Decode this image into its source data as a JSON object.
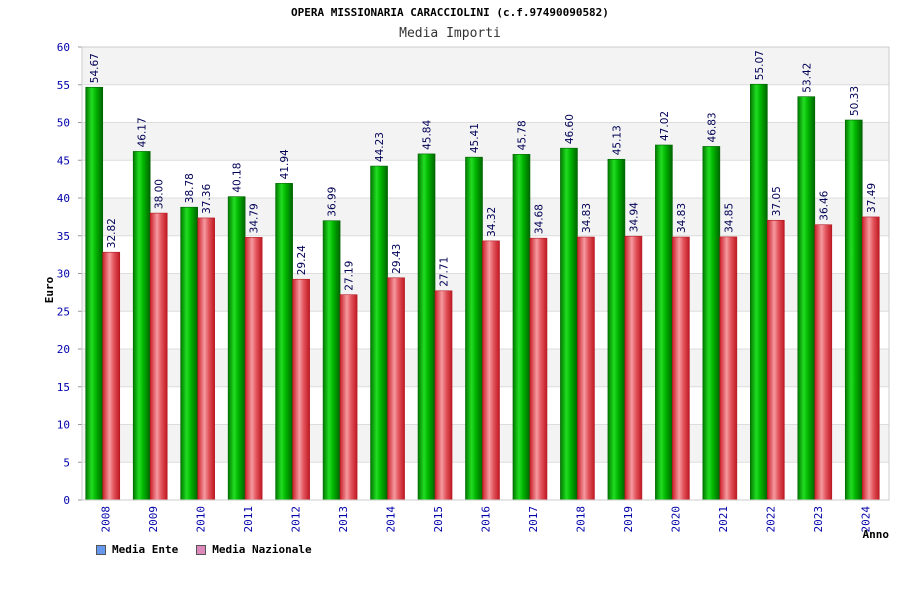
{
  "chart_data": {
    "type": "bar",
    "title": "OPERA MISSIONARIA CARACCIOLINI (c.f.97490090582)",
    "subtitle": "Media Importi",
    "xlabel": "Anno",
    "ylabel": "Euro",
    "ylim": [
      0,
      60
    ],
    "yticks": [
      0,
      5,
      10,
      15,
      20,
      25,
      30,
      35,
      40,
      45,
      50,
      55,
      60
    ],
    "grid": true,
    "legend_position": "bottom-left",
    "categories": [
      "2008",
      "2009",
      "2010",
      "2011",
      "2012",
      "2013",
      "2014",
      "2015",
      "2016",
      "2017",
      "2018",
      "2019",
      "2020",
      "2021",
      "2022",
      "2023",
      "2024"
    ],
    "series": [
      {
        "name": "Media Ente",
        "color": "#00aa00",
        "legend_color": "#6699ee",
        "values": [
          54.67,
          46.17,
          38.78,
          40.18,
          41.94,
          36.99,
          44.23,
          45.84,
          45.41,
          45.78,
          46.6,
          45.13,
          47.02,
          46.83,
          55.07,
          53.42,
          50.33
        ],
        "labels": [
          "54.67",
          "46.17",
          "38.78",
          "40.18",
          "41.94",
          "36.99",
          "44.23",
          "45.84",
          "45.41",
          "45.78",
          "46.60",
          "45.13",
          "47.02",
          "46.83",
          "55.07",
          "53.42",
          "50.33"
        ]
      },
      {
        "name": "Media Nazionale",
        "color": "#e03a3a",
        "legend_color": "#dd88bb",
        "values": [
          32.82,
          38.0,
          37.36,
          34.79,
          29.24,
          27.19,
          29.43,
          27.71,
          34.32,
          34.68,
          34.83,
          34.94,
          34.83,
          34.85,
          37.05,
          36.46,
          37.49
        ],
        "labels": [
          "32.82",
          "38.00",
          "37.36",
          "34.79",
          "29.24",
          "27.19",
          "29.43",
          "27.71",
          "34.32",
          "34.68",
          "34.83",
          "34.94",
          "34.83",
          "34.85",
          "37.05",
          "36.46",
          "37.49"
        ]
      }
    ]
  }
}
